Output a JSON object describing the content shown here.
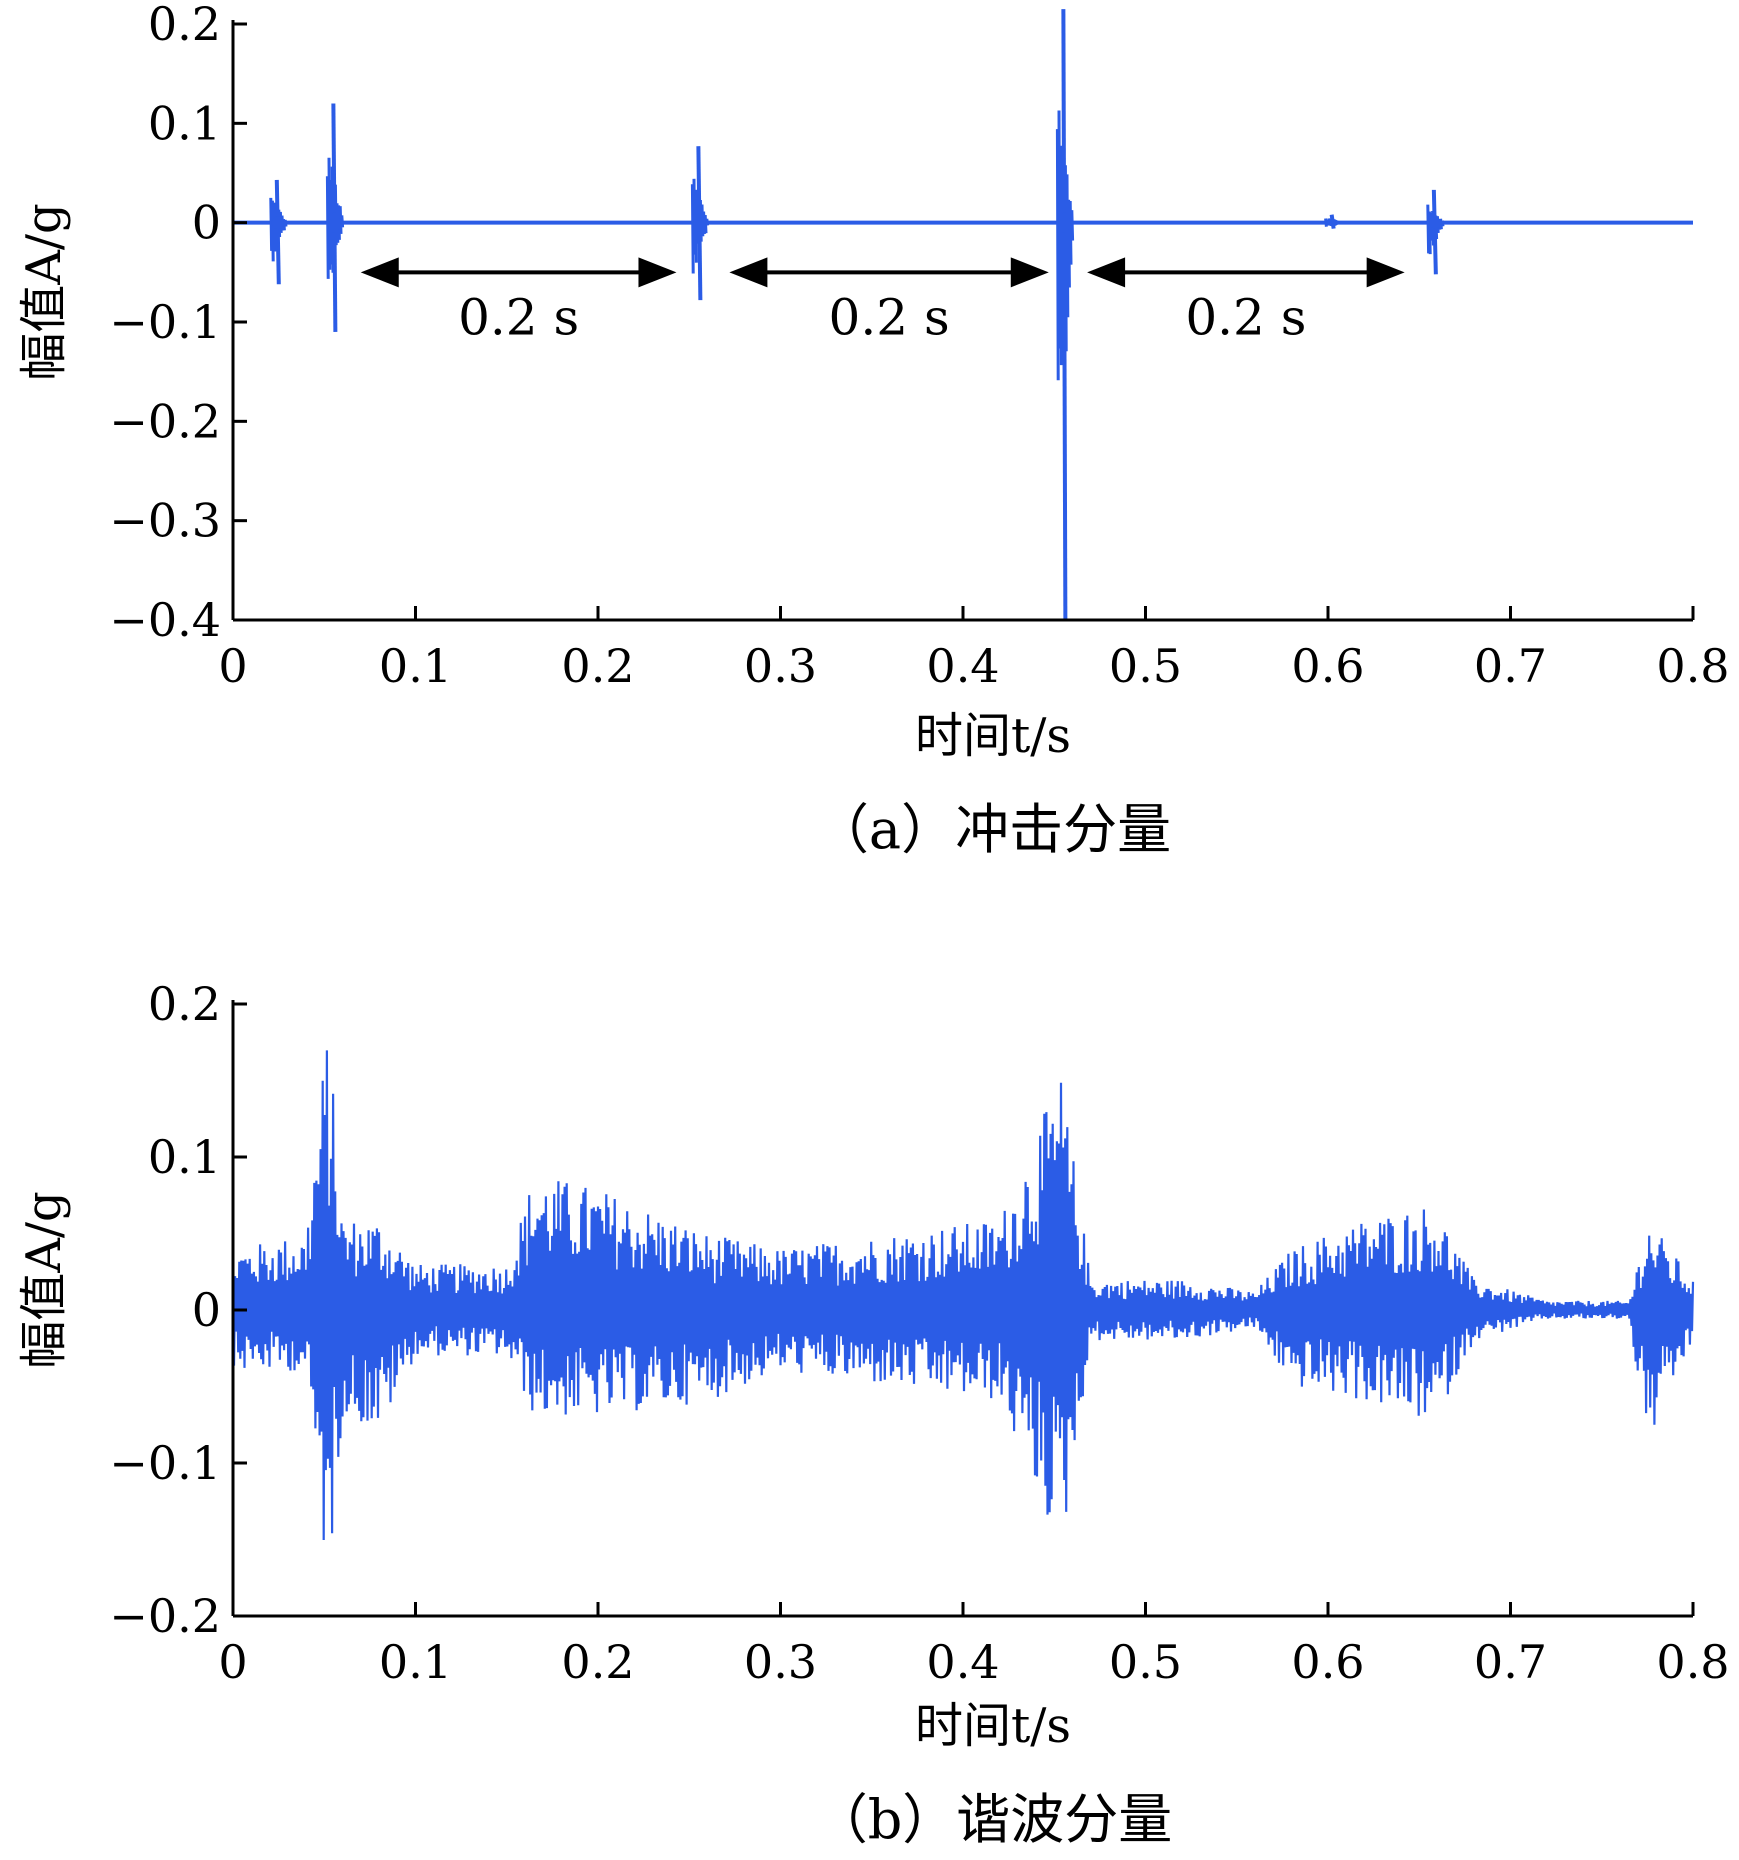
{
  "colors": {
    "signal": "#2b5ce6",
    "axis": "#000000",
    "arrow": "#000000"
  },
  "chart_data": [
    {
      "type": "line",
      "caption": "（a）冲击分量",
      "xlabel": "时间t/s",
      "ylabel": "幅值A/g",
      "xlim": [
        0,
        0.8
      ],
      "ylim": [
        -0.4,
        0.2
      ],
      "xticks": [
        "0",
        "0.1",
        "0.2",
        "0.3",
        "0.4",
        "0.5",
        "0.6",
        "0.7",
        "0.8"
      ],
      "yticks": [
        "0.2",
        "0.1",
        "0",
        "−0.1",
        "−0.2",
        "−0.3",
        "−0.4"
      ],
      "grid": false,
      "series": [
        {
          "impulses": [
            {
              "t": 0.024,
              "max": 0.043,
              "min": -0.062
            },
            {
              "t": 0.055,
              "max": 0.12,
              "min": -0.11
            },
            {
              "t": 0.255,
              "max": 0.077,
              "min": -0.078
            },
            {
              "t": 0.455,
              "max": 0.215,
              "min": -0.4
            },
            {
              "t": 0.602,
              "max": 0.008,
              "min": -0.006
            },
            {
              "t": 0.658,
              "max": 0.033,
              "min": -0.052
            }
          ]
        }
      ],
      "annotations": [
        {
          "text": "0.2 s",
          "from": 0.07,
          "to": 0.243,
          "y": -0.05
        },
        {
          "text": "0.2 s",
          "from": 0.272,
          "to": 0.447,
          "y": -0.05
        },
        {
          "text": "0.2 s",
          "from": 0.468,
          "to": 0.642,
          "y": -0.05
        }
      ]
    },
    {
      "type": "line",
      "caption": "（b）谐波分量",
      "xlabel": "时间t/s",
      "ylabel": "幅值A/g",
      "xlim": [
        0,
        0.8
      ],
      "ylim": [
        -0.2,
        0.2
      ],
      "xticks": [
        "0",
        "0.1",
        "0.2",
        "0.3",
        "0.4",
        "0.5",
        "0.6",
        "0.7",
        "0.8"
      ],
      "yticks": [
        "0.2",
        "0.1",
        "0",
        "−0.1",
        "−0.2"
      ],
      "grid": false,
      "series": [
        {
          "envelope": [
            {
              "t": 0.0,
              "max": 0.04,
              "min": -0.04
            },
            {
              "t": 0.04,
              "max": 0.05,
              "min": -0.04
            },
            {
              "t": 0.052,
              "max": 0.19,
              "min": -0.185
            },
            {
              "t": 0.06,
              "max": 0.06,
              "min": -0.07
            },
            {
              "t": 0.08,
              "max": 0.06,
              "min": -0.08
            },
            {
              "t": 0.1,
              "max": 0.03,
              "min": -0.03
            },
            {
              "t": 0.15,
              "max": 0.03,
              "min": -0.03
            },
            {
              "t": 0.165,
              "max": 0.09,
              "min": -0.07
            },
            {
              "t": 0.2,
              "max": 0.08,
              "min": -0.07
            },
            {
              "t": 0.26,
              "max": 0.05,
              "min": -0.06
            },
            {
              "t": 0.3,
              "max": 0.04,
              "min": -0.04
            },
            {
              "t": 0.36,
              "max": 0.05,
              "min": -0.05
            },
            {
              "t": 0.42,
              "max": 0.06,
              "min": -0.06
            },
            {
              "t": 0.454,
              "max": 0.155,
              "min": -0.16
            },
            {
              "t": 0.47,
              "max": 0.02,
              "min": -0.02
            },
            {
              "t": 0.52,
              "max": 0.02,
              "min": -0.02
            },
            {
              "t": 0.56,
              "max": 0.012,
              "min": -0.012
            },
            {
              "t": 0.58,
              "max": 0.04,
              "min": -0.05
            },
            {
              "t": 0.62,
              "max": 0.06,
              "min": -0.06
            },
            {
              "t": 0.658,
              "max": 0.07,
              "min": -0.075
            },
            {
              "t": 0.68,
              "max": 0.02,
              "min": -0.02
            },
            {
              "t": 0.72,
              "max": 0.006,
              "min": -0.006
            },
            {
              "t": 0.765,
              "max": 0.006,
              "min": -0.006
            },
            {
              "t": 0.775,
              "max": 0.06,
              "min": -0.09
            },
            {
              "t": 0.8,
              "max": 0.02,
              "min": -0.02
            }
          ]
        }
      ]
    }
  ]
}
